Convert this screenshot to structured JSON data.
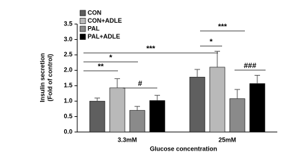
{
  "chart_data": {
    "type": "bar",
    "y_label": [
      "Insulin secretion",
      "(Fold of control)"
    ],
    "x_label": "Glucose concentration",
    "categories": [
      "3.3mM",
      "25mM"
    ],
    "series": [
      {
        "name": "CON",
        "color": "#5f5f5f",
        "values": [
          1.0,
          1.78
        ],
        "errors": [
          0.1,
          0.25
        ]
      },
      {
        "name": "CON+ADLE",
        "color": "#b9b9b9",
        "values": [
          1.43,
          2.1
        ],
        "errors": [
          0.3,
          0.52
        ]
      },
      {
        "name": "PAL",
        "color": "#8a8a8a",
        "values": [
          0.7,
          1.08
        ],
        "errors": [
          0.13,
          0.3
        ]
      },
      {
        "name": "PAL+ADLE",
        "color": "#000000",
        "values": [
          1.02,
          1.57
        ],
        "errors": [
          0.17,
          0.27
        ]
      }
    ],
    "ylim": [
      0,
      3.5
    ],
    "yticks": [
      {
        "value": 0,
        "label": "0.0"
      },
      {
        "value": 0.5,
        "label": "0.5"
      },
      {
        "value": 1,
        "label": "1.0"
      },
      {
        "value": 1.5,
        "label": "1.5"
      },
      {
        "value": 2,
        "label": "2.0"
      },
      {
        "value": 2.5,
        "label": "2.5"
      },
      {
        "value": 3,
        "label": "3.0"
      },
      {
        "value": 3.5,
        "label": "3.5"
      }
    ],
    "annotations": [
      "**",
      "*",
      "***",
      "#",
      "***",
      "*",
      "###"
    ]
  }
}
